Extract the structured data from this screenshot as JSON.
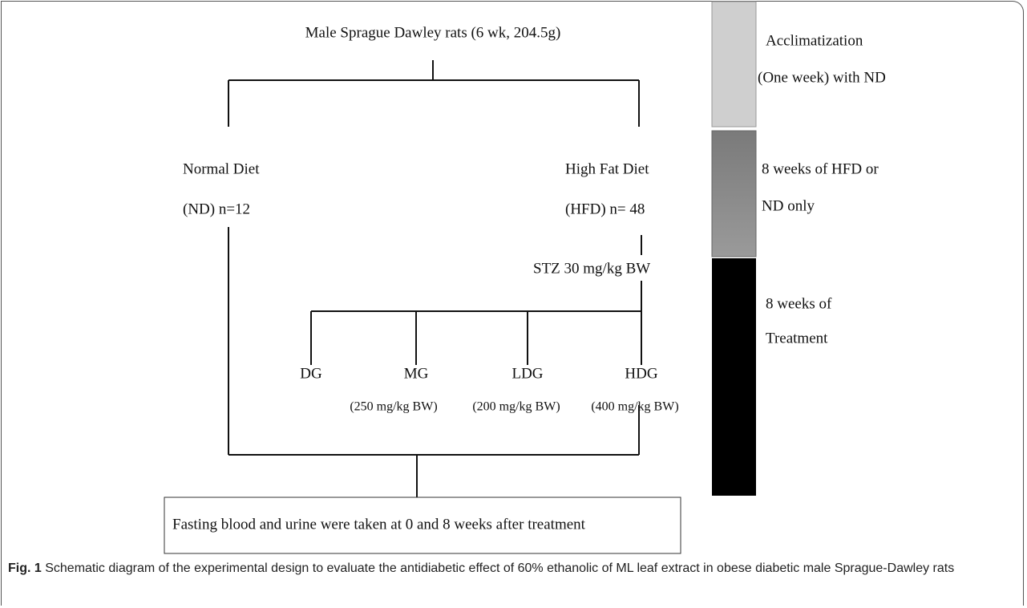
{
  "title": "Male Sprague Dawley rats (6 wk, 204.5g)",
  "groups": [
    {
      "label": "Normal Diet",
      "detail": "(ND) n=12"
    },
    {
      "label": "High Fat Diet",
      "detail": "(HFD) n= 48"
    }
  ],
  "induction": "STZ 30 mg/kg BW",
  "subgroups": [
    {
      "label": "DG"
    },
    {
      "label": "MG",
      "dose": "(250 mg/kg BW)"
    },
    {
      "label": "LDG",
      "dose": "(200 mg/kg BW)"
    },
    {
      "label": "HDG",
      "dose": "(400 mg/kg BW)"
    }
  ],
  "outcome": "Fasting blood and urine were taken at 0 and 8 weeks after treatment",
  "timeline": [
    {
      "lines": [
        "Acclimatization",
        "(One week) with ND"
      ]
    },
    {
      "lines": [
        "8 weeks of HFD or",
        "ND only"
      ]
    },
    {
      "lines": [
        "8 weeks of",
        "Treatment"
      ]
    }
  ],
  "caption": {
    "label": "Fig. 1",
    "text": "Schematic diagram of the experimental design to evaluate the antidiabetic effect of 60% ethanolic of ML leaf extract in obese diabetic male Sprague-Dawley rats"
  }
}
